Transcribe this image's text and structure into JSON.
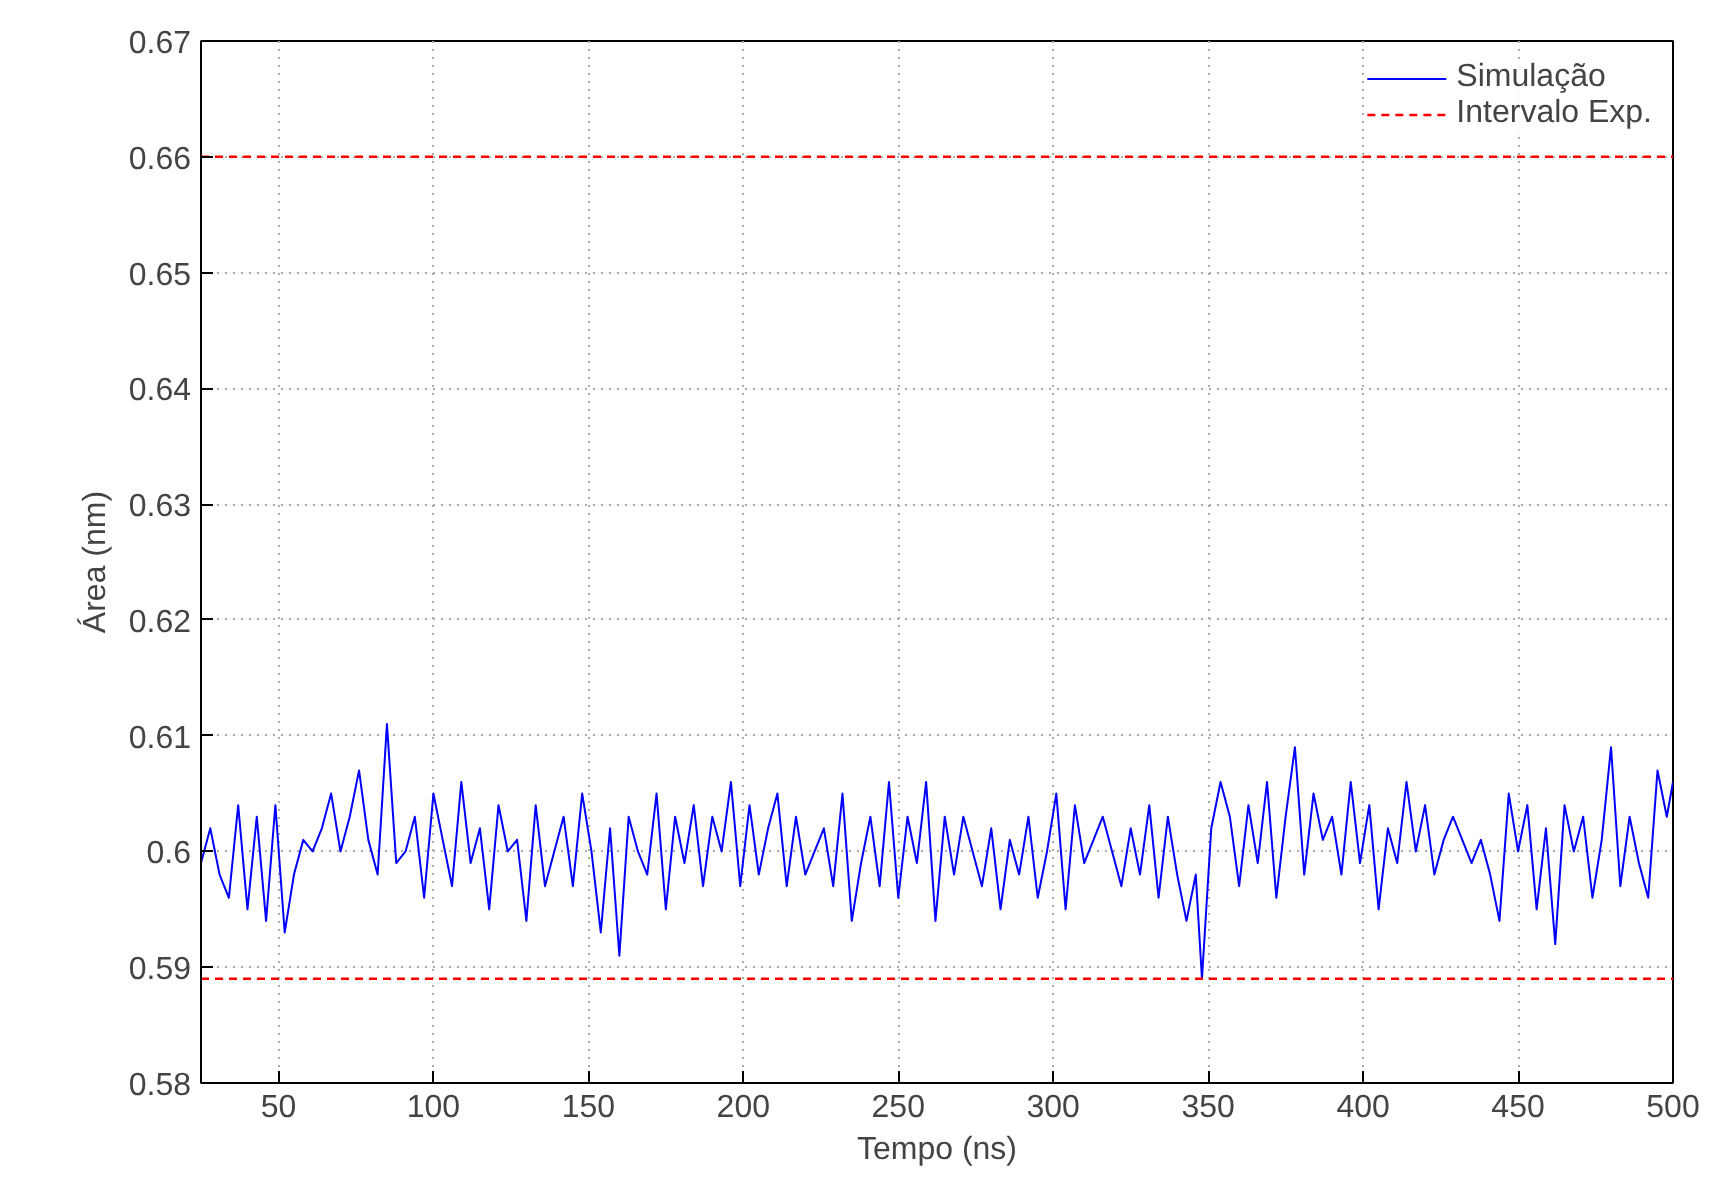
{
  "chart_data": {
    "type": "line",
    "xlabel": "Tempo (ns)",
    "ylabel": "Área (nm)",
    "xlim": [
      25,
      500
    ],
    "ylim": [
      0.58,
      0.67
    ],
    "xticks": [
      50,
      100,
      150,
      200,
      250,
      300,
      350,
      400,
      450,
      500
    ],
    "yticks": [
      0.58,
      0.59,
      0.6,
      0.61,
      0.62,
      0.63,
      0.64,
      0.65,
      0.66,
      0.67
    ],
    "grid": true,
    "legend": "top right",
    "line_style": "solid",
    "series": [
      {
        "name": "Simulação",
        "color": "#0000ff",
        "x": [
          25,
          28,
          31,
          34,
          37,
          40,
          43,
          46,
          49,
          52,
          55,
          58,
          61,
          64,
          67,
          70,
          73,
          76,
          79,
          82,
          85,
          88,
          91,
          94,
          97,
          100,
          103,
          106,
          109,
          112,
          115,
          118,
          121,
          124,
          127,
          130,
          133,
          136,
          139,
          142,
          145,
          148,
          151,
          154,
          157,
          160,
          163,
          166,
          169,
          172,
          175,
          178,
          181,
          184,
          187,
          190,
          193,
          196,
          199,
          202,
          205,
          208,
          211,
          214,
          217,
          220,
          223,
          226,
          229,
          232,
          235,
          238,
          241,
          244,
          247,
          250,
          253,
          256,
          259,
          262,
          265,
          268,
          271,
          274,
          277,
          280,
          283,
          286,
          289,
          292,
          295,
          298,
          301,
          304,
          307,
          310,
          313,
          316,
          319,
          322,
          325,
          328,
          331,
          334,
          337,
          340,
          343,
          346,
          348,
          351,
          354,
          357,
          360,
          363,
          366,
          369,
          372,
          375,
          378,
          381,
          384,
          387,
          390,
          393,
          396,
          399,
          402,
          405,
          408,
          411,
          414,
          417,
          420,
          423,
          426,
          429,
          432,
          435,
          438,
          441,
          444,
          447,
          450,
          453,
          456,
          459,
          462,
          465,
          468,
          471,
          474,
          477,
          480,
          483,
          486,
          489,
          492,
          495,
          498,
          500
        ],
        "values": [
          0.599,
          0.602,
          0.598,
          0.596,
          0.604,
          0.595,
          0.603,
          0.594,
          0.604,
          0.593,
          0.598,
          0.601,
          0.6,
          0.602,
          0.605,
          0.6,
          0.603,
          0.607,
          0.601,
          0.598,
          0.611,
          0.599,
          0.6,
          0.603,
          0.596,
          0.605,
          0.601,
          0.597,
          0.606,
          0.599,
          0.602,
          0.595,
          0.604,
          0.6,
          0.601,
          0.594,
          0.604,
          0.597,
          0.6,
          0.603,
          0.597,
          0.605,
          0.6,
          0.593,
          0.602,
          0.591,
          0.603,
          0.6,
          0.598,
          0.605,
          0.595,
          0.603,
          0.599,
          0.604,
          0.597,
          0.603,
          0.6,
          0.606,
          0.597,
          0.604,
          0.598,
          0.602,
          0.605,
          0.597,
          0.603,
          0.598,
          0.6,
          0.602,
          0.597,
          0.605,
          0.594,
          0.599,
          0.603,
          0.597,
          0.606,
          0.596,
          0.603,
          0.599,
          0.606,
          0.594,
          0.603,
          0.598,
          0.603,
          0.6,
          0.597,
          0.602,
          0.595,
          0.601,
          0.598,
          0.603,
          0.596,
          0.6,
          0.605,
          0.595,
          0.604,
          0.599,
          0.601,
          0.603,
          0.6,
          0.597,
          0.602,
          0.598,
          0.604,
          0.596,
          0.603,
          0.598,
          0.594,
          0.598,
          0.589,
          0.602,
          0.606,
          0.603,
          0.597,
          0.604,
          0.599,
          0.606,
          0.596,
          0.603,
          0.609,
          0.598,
          0.605,
          0.601,
          0.603,
          0.598,
          0.606,
          0.599,
          0.604,
          0.595,
          0.602,
          0.599,
          0.606,
          0.6,
          0.604,
          0.598,
          0.601,
          0.603,
          0.601,
          0.599,
          0.601,
          0.598,
          0.594,
          0.605,
          0.6,
          0.604,
          0.595,
          0.602,
          0.592,
          0.604,
          0.6,
          0.603,
          0.596,
          0.601,
          0.609,
          0.597,
          0.603,
          0.599,
          0.596,
          0.607,
          0.603,
          0.606
        ]
      }
    ],
    "ref_lines": [
      {
        "axis": "y",
        "value": 0.66,
        "label": "Intervalo Exp.",
        "color": "#ff0000",
        "line_style": "dashed"
      },
      {
        "axis": "y",
        "value": 0.589,
        "color": "#ff0000",
        "line_style": "dashed"
      }
    ]
  }
}
